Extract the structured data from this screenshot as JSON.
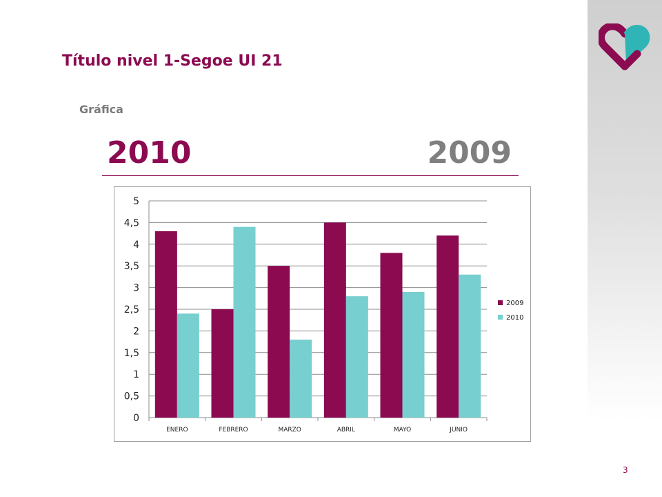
{
  "slide": {
    "title": "Título nivel 1-Segoe UI 21",
    "subtitle": "Gráfica",
    "year_left": "2010",
    "year_right": "2009",
    "page_number": "3"
  },
  "colors": {
    "brand": "#8b0a50",
    "series_2009": "#8b0a50",
    "series_2010": "#78cfcf",
    "year_right": "#7f7f7f",
    "logo_teal": "#2fb5b5"
  },
  "chart_data": {
    "type": "bar",
    "categories": [
      "ENERO",
      "FEBRERO",
      "MARZO",
      "ABRIL",
      "MAYO",
      "JUNIO"
    ],
    "series": [
      {
        "name": "2009",
        "values": [
          4.3,
          2.5,
          3.5,
          4.5,
          3.8,
          4.2
        ]
      },
      {
        "name": "2010",
        "values": [
          2.4,
          4.4,
          1.8,
          2.8,
          2.9,
          3.3
        ]
      }
    ],
    "ylim": [
      0,
      5
    ],
    "yticks": [
      "0",
      "0,5",
      "1",
      "1,5",
      "2",
      "2,5",
      "3",
      "3,5",
      "4",
      "4,5",
      "5"
    ],
    "grid": true,
    "legend_position": "right"
  }
}
